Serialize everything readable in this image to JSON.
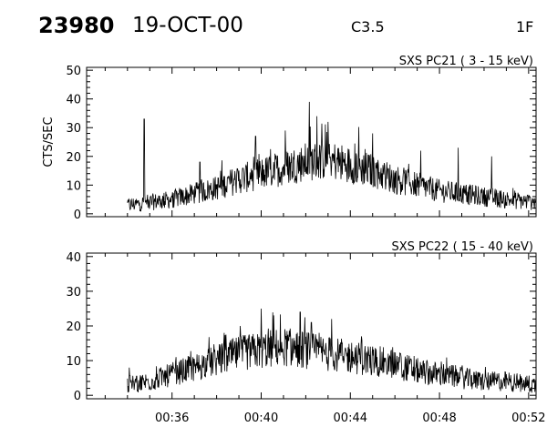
{
  "header": {
    "event_id": "23980",
    "date": "19-OCT-00",
    "flare_class": "C3.5",
    "figure_id": "1F"
  },
  "chart_data": [
    {
      "type": "line",
      "title": "SXS PC21  (  3 - 15 keV)",
      "ylabel": "CTS/SEC",
      "xlabel": "",
      "x_unit": "UT (hh:mm)",
      "xlim": [
        "00:32:10",
        "00:52:20"
      ],
      "ylim": [
        -1,
        51
      ],
      "yticks": [
        0,
        10,
        20,
        30,
        40,
        50
      ],
      "xticks": [
        "00:36",
        "00:40",
        "00:44",
        "00:48",
        "00:52"
      ],
      "show_xtick_labels": false,
      "grid": false,
      "data_start": "00:34:00",
      "data_end": "00:52:20",
      "profile": [
        [
          "00:34:00",
          3
        ],
        [
          "00:35:00",
          4
        ],
        [
          "00:36:00",
          5
        ],
        [
          "00:37:00",
          7
        ],
        [
          "00:38:00",
          9
        ],
        [
          "00:39:00",
          12
        ],
        [
          "00:40:00",
          14
        ],
        [
          "00:41:00",
          16
        ],
        [
          "00:42:00",
          18
        ],
        [
          "00:43:00",
          19
        ],
        [
          "00:44:00",
          17
        ],
        [
          "00:45:00",
          15
        ],
        [
          "00:46:00",
          12
        ],
        [
          "00:47:00",
          10
        ],
        [
          "00:48:00",
          8
        ],
        [
          "00:49:00",
          7
        ],
        [
          "00:50:00",
          6
        ],
        [
          "00:51:00",
          5
        ],
        [
          "00:52:20",
          4
        ]
      ],
      "spikes": [
        [
          "00:34:45",
          33
        ],
        [
          "00:37:15",
          18
        ],
        [
          "00:39:45",
          27
        ],
        [
          "00:41:05",
          29
        ],
        [
          "00:42:10",
          39
        ],
        [
          "00:42:30",
          34
        ],
        [
          "00:43:00",
          32
        ],
        [
          "00:45:00",
          28
        ],
        [
          "00:47:10",
          22
        ],
        [
          "00:48:50",
          23
        ],
        [
          "00:50:20",
          20
        ]
      ]
    },
    {
      "type": "line",
      "title": "SXS PC22  ( 15 - 40 keV)",
      "ylabel": "",
      "xlabel": "",
      "x_unit": "UT (hh:mm)",
      "xlim": [
        "00:32:10",
        "00:52:20"
      ],
      "ylim": [
        -1,
        41
      ],
      "yticks": [
        0,
        10,
        20,
        30,
        40
      ],
      "xticks": [
        "00:36",
        "00:40",
        "00:44",
        "00:48",
        "00:52"
      ],
      "show_xtick_labels": true,
      "grid": false,
      "data_start": "00:34:00",
      "data_end": "00:52:20",
      "profile": [
        [
          "00:34:00",
          3
        ],
        [
          "00:35:00",
          4
        ],
        [
          "00:36:00",
          6
        ],
        [
          "00:37:00",
          8
        ],
        [
          "00:38:00",
          10
        ],
        [
          "00:39:00",
          12
        ],
        [
          "00:40:00",
          13
        ],
        [
          "00:41:00",
          14
        ],
        [
          "00:42:00",
          13
        ],
        [
          "00:43:00",
          12
        ],
        [
          "00:44:00",
          11
        ],
        [
          "00:45:00",
          10
        ],
        [
          "00:46:00",
          9
        ],
        [
          "00:47:00",
          7
        ],
        [
          "00:48:00",
          6
        ],
        [
          "00:49:00",
          5
        ],
        [
          "00:50:00",
          4
        ],
        [
          "00:51:00",
          4
        ],
        [
          "00:52:20",
          3
        ]
      ],
      "spikes": [
        [
          "00:34:05",
          8
        ],
        [
          "00:38:20",
          18
        ],
        [
          "00:40:00",
          25
        ],
        [
          "00:41:45",
          24
        ],
        [
          "00:42:15",
          21
        ],
        [
          "00:43:10",
          22
        ],
        [
          "00:44:30",
          17
        ],
        [
          "00:46:15",
          12
        ]
      ]
    }
  ]
}
